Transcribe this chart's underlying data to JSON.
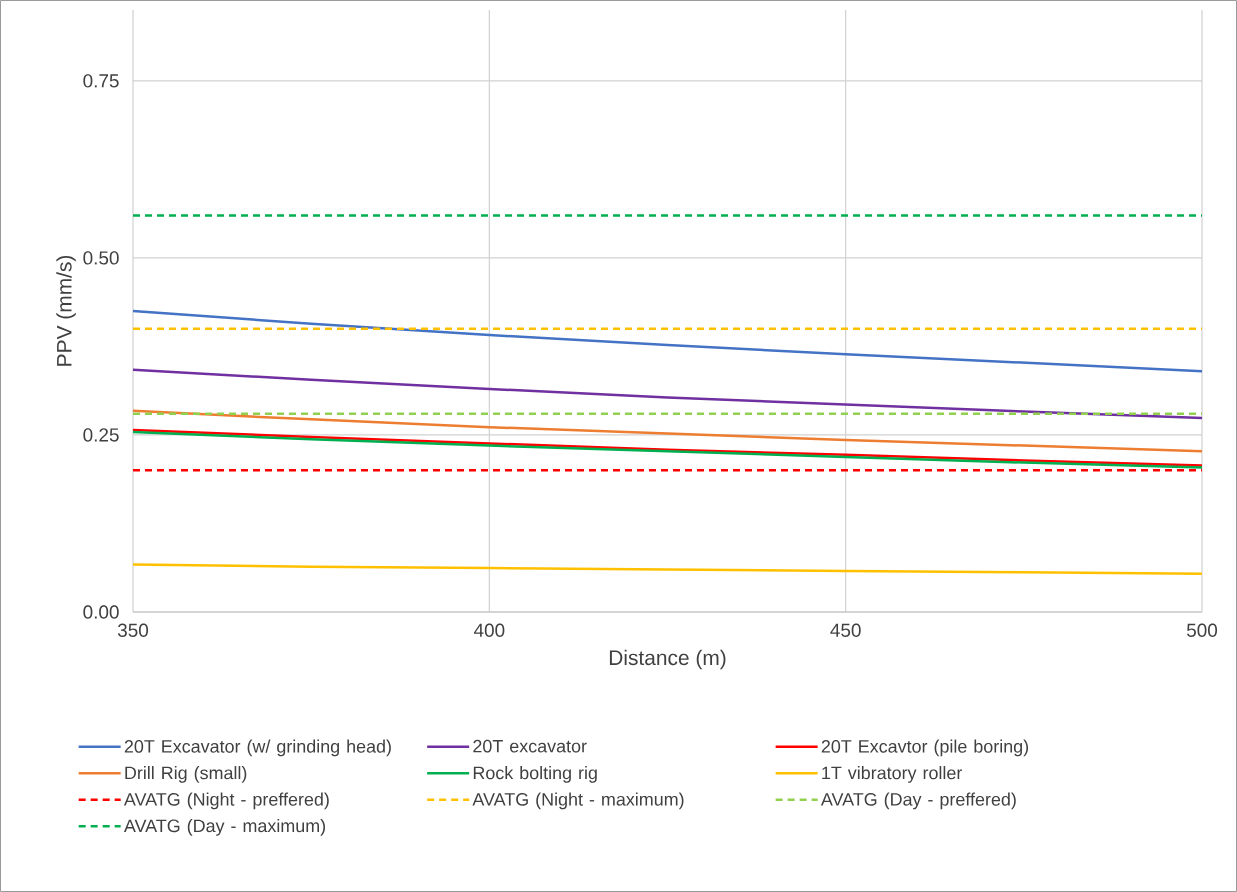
{
  "chart_data": {
    "type": "line",
    "xlabel": "Distance (m)",
    "ylabel": "PPV (mm/s)",
    "x": [
      350,
      375,
      400,
      425,
      450,
      475,
      500
    ],
    "xlim": [
      350,
      500
    ],
    "xticks": [
      350,
      400,
      450,
      500
    ],
    "ylim": [
      0,
      0.85
    ],
    "yticks": [
      {
        "value": 0,
        "label": "0.00"
      },
      {
        "value": 0.25,
        "label": "0.25"
      },
      {
        "value": 0.5,
        "label": "0.50"
      },
      {
        "value": 0.75,
        "label": "0.75"
      }
    ],
    "grid": true,
    "legend": "bottom",
    "marker": "none",
    "series": [
      {
        "name": "20T Excavator (w/ grinding head)",
        "color": "#4472c4",
        "values": [
          0.425,
          0.407,
          0.391,
          0.377,
          0.364,
          0.352,
          0.34
        ]
      },
      {
        "name": "20T excavator",
        "color": "#7030a0",
        "values": [
          0.342,
          0.328,
          0.315,
          0.303,
          0.293,
          0.283,
          0.274
        ]
      },
      {
        "name": "20T Excavtor (pile boring)",
        "color": "#ff0000",
        "values": [
          0.257,
          0.247,
          0.238,
          0.229,
          0.222,
          0.214,
          0.207
        ]
      },
      {
        "name": "Drill Rig (small)",
        "color": "#ed7d31",
        "values": [
          0.284,
          0.272,
          0.261,
          0.252,
          0.243,
          0.235,
          0.227
        ]
      },
      {
        "name": "Rock bolting rig",
        "color": "#00b050",
        "values": [
          0.254,
          0.244,
          0.235,
          0.227,
          0.219,
          0.211,
          0.204
        ]
      },
      {
        "name": "1T vibratory roller",
        "color": "#ffc000",
        "values": [
          0.067,
          0.064,
          0.062,
          0.06,
          0.058,
          0.056,
          0.054
        ]
      },
      {
        "name": "AVATG (Night - preffered)",
        "color": "#ff0000",
        "line_style": "dashed",
        "values": [
          0.2,
          0.2,
          0.2,
          0.2,
          0.2,
          0.2,
          0.2
        ]
      },
      {
        "name": "AVATG (Night - maximum)",
        "color": "#ffc000",
        "line_style": "dashed",
        "values": [
          0.4,
          0.4,
          0.4,
          0.4,
          0.4,
          0.4,
          0.4
        ]
      },
      {
        "name": "AVATG (Day - preffered)",
        "color": "#92d050",
        "line_style": "dashed",
        "values": [
          0.28,
          0.28,
          0.28,
          0.28,
          0.28,
          0.28,
          0.28
        ]
      },
      {
        "name": "AVATG (Day - maximum)",
        "color": "#00b050",
        "line_style": "dashed",
        "values": [
          0.56,
          0.56,
          0.56,
          0.56,
          0.56,
          0.56,
          0.56
        ]
      }
    ]
  }
}
